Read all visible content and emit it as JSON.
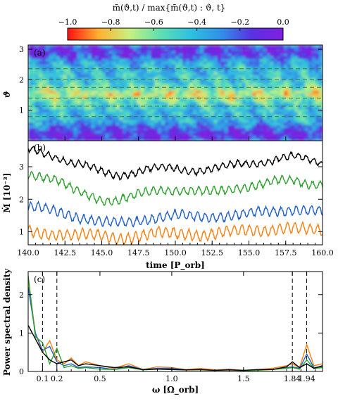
{
  "colorbar": {
    "title": "m̄(ϑ,t) / max{m̄(ϑ,t) : ϑ, t}",
    "ticks": [
      -1.0,
      -0.8,
      -0.6,
      -0.4,
      -0.2,
      0.0
    ],
    "tick_labels": [
      "−1.0",
      "−0.8",
      "−0.6",
      "−0.4",
      "−0.2",
      "0.0"
    ],
    "range": [
      -1.0,
      0.0
    ],
    "colormap": [
      "#ff1010",
      "#ffb030",
      "#c8f080",
      "#60e0b0",
      "#30c0e0",
      "#3090e8",
      "#5a30e0",
      "#8020e0"
    ]
  },
  "chart_data": [
    {
      "panel": "(a)",
      "type": "heatmap",
      "title": "",
      "xlabel": "",
      "ylabel": "ϑ",
      "xlim": [
        140,
        160
      ],
      "ylim": [
        0,
        3.14
      ],
      "yticks": [
        1,
        2,
        3
      ],
      "yticklabels": [
        "1",
        "2",
        "3"
      ],
      "value_range": [
        -1.0,
        0.0
      ],
      "dashed_lines_theta": [
        0.79,
        1.13,
        1.4,
        1.75,
        2.0,
        2.36
      ]
    },
    {
      "panel": "(b)",
      "type": "line",
      "title": "",
      "xlabel": "time [P_orb]",
      "ylabel": "Ṁ [10⁻³]",
      "xlim": [
        140,
        160
      ],
      "ylim": [
        0.6,
        3.8
      ],
      "xticks": [
        140,
        142.5,
        145,
        147.5,
        150,
        152.5,
        155,
        157.5,
        160
      ],
      "xticklabels": [
        "140.0",
        "142.5",
        "145.0",
        "147.5",
        "150.0",
        "152.5",
        "155.0",
        "157.5",
        "160.0"
      ],
      "yticks": [
        1,
        2,
        3
      ],
      "yticklabels": [
        "1",
        "2",
        "3"
      ],
      "series": [
        {
          "color": "#000000",
          "mean": 3.0,
          "x": [
            140,
            141,
            142,
            143,
            144,
            145,
            146,
            147,
            148,
            149,
            150,
            151,
            152,
            153,
            154,
            155,
            156,
            157,
            158,
            159,
            160
          ],
          "y": [
            3.55,
            3.45,
            3.3,
            3.1,
            3.0,
            2.85,
            2.75,
            2.8,
            2.9,
            2.95,
            2.95,
            2.9,
            2.9,
            2.95,
            3.05,
            3.1,
            3.15,
            3.25,
            3.3,
            3.2,
            3.1
          ]
        },
        {
          "color": "#2ca02c",
          "mean": 2.3,
          "x": [
            140,
            141,
            142,
            143,
            144,
            145,
            146,
            147,
            148,
            149,
            150,
            151,
            152,
            153,
            154,
            155,
            156,
            157,
            158,
            159,
            160
          ],
          "y": [
            2.8,
            2.7,
            2.55,
            2.3,
            2.15,
            2.0,
            1.95,
            2.05,
            2.2,
            2.3,
            2.3,
            2.25,
            2.2,
            2.25,
            2.35,
            2.4,
            2.45,
            2.55,
            2.6,
            2.5,
            2.45
          ]
        },
        {
          "color": "#1f5fc8",
          "mean": 1.5,
          "x": [
            140,
            141,
            142,
            143,
            144,
            145,
            146,
            147,
            148,
            149,
            150,
            151,
            152,
            153,
            154,
            155,
            156,
            157,
            158,
            159,
            160
          ],
          "y": [
            1.75,
            1.7,
            1.6,
            1.5,
            1.4,
            1.3,
            1.25,
            1.3,
            1.4,
            1.45,
            1.5,
            1.45,
            1.45,
            1.5,
            1.5,
            1.55,
            1.6,
            1.65,
            1.7,
            1.65,
            1.6
          ]
        },
        {
          "color": "#ff7f0e",
          "mean": 0.95,
          "x": [
            140,
            141,
            142,
            143,
            144,
            145,
            146,
            147,
            148,
            149,
            150,
            151,
            152,
            153,
            154,
            155,
            156,
            157,
            158,
            159,
            160
          ],
          "y": [
            1.0,
            0.95,
            0.95,
            0.9,
            0.9,
            0.85,
            0.8,
            0.85,
            0.9,
            0.95,
            0.95,
            0.95,
            0.9,
            0.95,
            1.0,
            1.05,
            1.05,
            1.1,
            1.1,
            1.05,
            1.05
          ]
        }
      ]
    },
    {
      "panel": "(c)",
      "type": "line",
      "title": "",
      "xlabel": "ω [Ω_orb]",
      "ylabel": "Power spectral density",
      "xlim": [
        0.0,
        2.05
      ],
      "ylim": [
        0,
        2.6
      ],
      "xticks": [
        0.1,
        0.2,
        0.5,
        1.0,
        1.5,
        1.84,
        1.94
      ],
      "xticklabels": [
        "0.1",
        "0.2",
        "0.5",
        "1.0",
        "1.5",
        "1.84",
        "1.94"
      ],
      "yticks": [
        0,
        1,
        2
      ],
      "yticklabels": [
        "0",
        "1",
        "2"
      ],
      "dashed_lines_x": [
        0.1,
        0.2,
        1.84,
        1.94
      ],
      "series": [
        {
          "color": "#ff7f0e",
          "x": [
            0.0,
            0.05,
            0.1,
            0.15,
            0.2,
            0.25,
            0.3,
            0.35,
            0.4,
            0.5,
            0.6,
            0.7,
            0.8,
            0.9,
            1.0,
            1.1,
            1.2,
            1.3,
            1.4,
            1.5,
            1.6,
            1.7,
            1.8,
            1.84,
            1.89,
            1.94,
            1.99,
            2.05
          ],
          "y": [
            2.4,
            1.0,
            0.5,
            0.8,
            0.3,
            0.2,
            0.35,
            0.15,
            0.25,
            0.15,
            0.08,
            0.2,
            0.05,
            0.12,
            0.1,
            0.05,
            0.08,
            0.04,
            0.06,
            0.03,
            0.05,
            0.08,
            0.15,
            0.2,
            0.1,
            0.7,
            0.15,
            0.2
          ]
        },
        {
          "color": "#1f5fc8",
          "x": [
            0.0,
            0.05,
            0.1,
            0.15,
            0.2,
            0.25,
            0.3,
            0.35,
            0.4,
            0.5,
            0.6,
            0.7,
            0.8,
            0.9,
            1.0,
            1.1,
            1.2,
            1.3,
            1.4,
            1.5,
            1.6,
            1.7,
            1.8,
            1.84,
            1.89,
            1.94,
            1.99,
            2.05
          ],
          "y": [
            2.2,
            1.0,
            0.55,
            0.65,
            0.25,
            0.15,
            0.2,
            0.1,
            0.12,
            0.1,
            0.05,
            0.15,
            0.05,
            0.08,
            0.08,
            0.04,
            0.05,
            0.03,
            0.05,
            0.02,
            0.04,
            0.05,
            0.1,
            0.12,
            0.08,
            0.45,
            0.1,
            0.12
          ]
        },
        {
          "color": "#2ca02c",
          "x": [
            0.0,
            0.05,
            0.1,
            0.15,
            0.2,
            0.25,
            0.3,
            0.35,
            0.4,
            0.5,
            0.6,
            0.7,
            0.8,
            0.9,
            1.0,
            1.1,
            1.2,
            1.3,
            1.4,
            1.5,
            1.6,
            1.7,
            1.8,
            1.84,
            1.89,
            1.94,
            1.99,
            2.05
          ],
          "y": [
            2.5,
            0.9,
            0.75,
            0.2,
            0.6,
            0.1,
            0.15,
            0.08,
            0.1,
            0.06,
            0.05,
            0.1,
            0.04,
            0.06,
            0.05,
            0.04,
            0.04,
            0.03,
            0.04,
            0.02,
            0.03,
            0.05,
            0.08,
            0.1,
            0.06,
            0.3,
            0.08,
            0.1
          ]
        },
        {
          "color": "#000000",
          "x": [
            0.0,
            0.05,
            0.1,
            0.15,
            0.2,
            0.25,
            0.3,
            0.35,
            0.4,
            0.5,
            0.6,
            0.7,
            0.8,
            0.9,
            1.0,
            1.1,
            1.2,
            1.3,
            1.4,
            1.5,
            1.6,
            1.7,
            1.8,
            1.84,
            1.89,
            1.94,
            1.99,
            2.05
          ],
          "y": [
            1.2,
            0.85,
            0.5,
            0.3,
            0.2,
            0.25,
            0.3,
            0.15,
            0.2,
            0.15,
            0.1,
            0.12,
            0.05,
            0.06,
            0.05,
            0.04,
            0.05,
            0.03,
            0.04,
            0.03,
            0.05,
            0.05,
            0.12,
            0.25,
            0.1,
            0.2,
            0.08,
            0.15
          ]
        }
      ]
    }
  ]
}
